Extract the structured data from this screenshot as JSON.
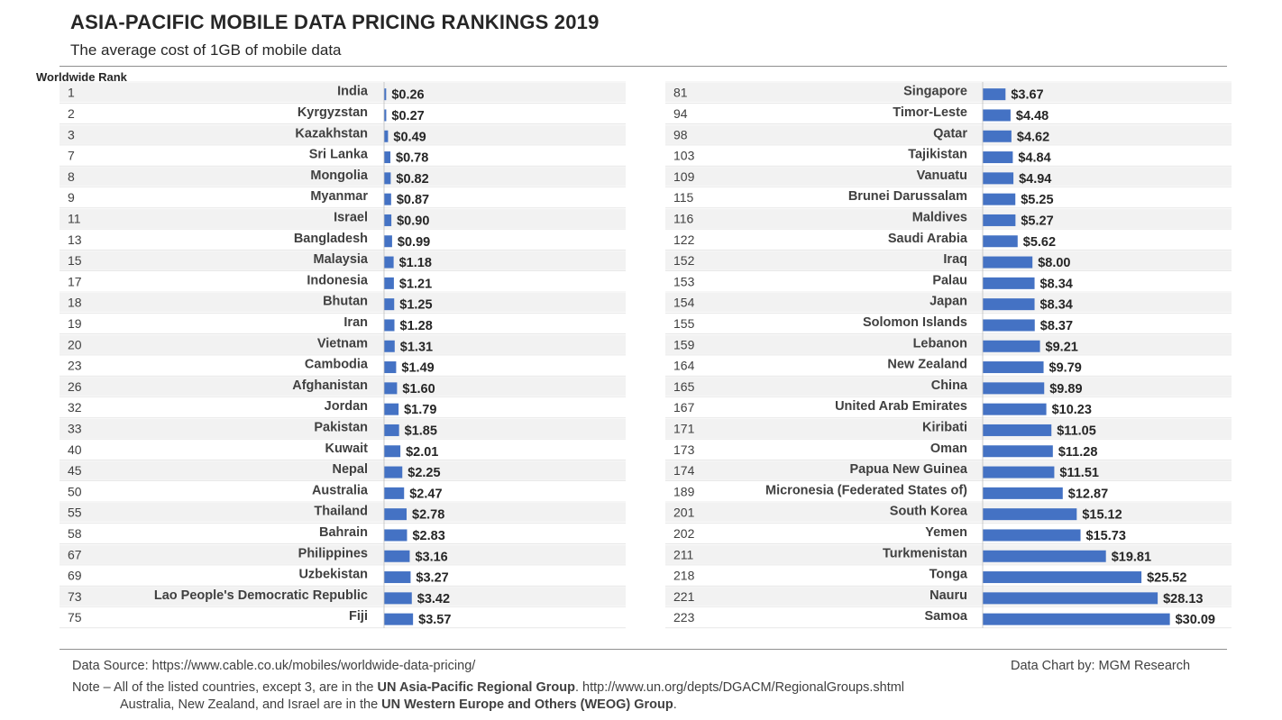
{
  "header": {
    "title": "ASIA-PACIFIC MOBILE DATA PRICING RANKINGS 2019",
    "subtitle": "The average cost of 1GB of mobile data",
    "rank_label": "Worldwide Rank"
  },
  "chart_data": [
    {
      "type": "bar",
      "orientation": "horizontal",
      "title": "ASIA-PACIFIC MOBILE DATA PRICING RANKINGS 2019",
      "subtitle": "The average cost of 1GB of mobile data",
      "xlim": [
        0,
        32
      ],
      "bar_color": "#4472C4",
      "ranks": [
        1,
        2,
        3,
        7,
        8,
        9,
        11,
        13,
        15,
        17,
        18,
        19,
        20,
        23,
        26,
        32,
        33,
        40,
        45,
        50,
        55,
        58,
        67,
        69,
        73,
        75
      ],
      "categories": [
        "India",
        "Kyrgyzstan",
        "Kazakhstan",
        "Sri Lanka",
        "Mongolia",
        "Myanmar",
        "Israel",
        "Bangladesh",
        "Malaysia",
        "Indonesia",
        "Bhutan",
        "Iran",
        "Vietnam",
        "Cambodia",
        "Afghanistan",
        "Jordan",
        "Pakistan",
        "Kuwait",
        "Nepal",
        "Australia",
        "Thailand",
        "Bahrain",
        "Philippines",
        "Uzbekistan",
        "Lao People's Democratic Republic",
        "Fiji"
      ],
      "values": [
        0.26,
        0.27,
        0.49,
        0.78,
        0.82,
        0.87,
        0.9,
        0.99,
        1.18,
        1.21,
        1.25,
        1.28,
        1.31,
        1.49,
        1.6,
        1.79,
        1.85,
        2.01,
        2.25,
        2.47,
        2.78,
        2.83,
        3.16,
        3.27,
        3.42,
        3.57
      ],
      "labels": [
        "$0.26",
        "$0.27",
        "$0.49",
        "$0.78",
        "$0.82",
        "$0.87",
        "$0.90",
        "$0.99",
        "$1.18",
        "$1.21",
        "$1.25",
        "$1.28",
        "$1.31",
        "$1.49",
        "$1.60",
        "$1.79",
        "$1.85",
        "$2.01",
        "$2.25",
        "$2.47",
        "$2.78",
        "$2.83",
        "$3.16",
        "$3.27",
        "$3.42",
        "$3.57"
      ]
    },
    {
      "type": "bar",
      "orientation": "horizontal",
      "xlim": [
        0,
        32
      ],
      "bar_color": "#4472C4",
      "ranks": [
        81,
        94,
        98,
        103,
        109,
        115,
        116,
        122,
        152,
        153,
        154,
        155,
        159,
        164,
        165,
        167,
        171,
        173,
        174,
        189,
        201,
        202,
        211,
        218,
        221,
        223
      ],
      "categories": [
        "Singapore",
        "Timor-Leste",
        "Qatar",
        "Tajikistan",
        "Vanuatu",
        "Brunei Darussalam",
        "Maldives",
        "Saudi Arabia",
        "Iraq",
        "Palau",
        "Japan",
        "Solomon Islands",
        "Lebanon",
        "New Zealand",
        "China",
        "United Arab Emirates",
        "Kiribati",
        "Oman",
        "Papua New Guinea",
        "Micronesia (Federated States of)",
        "South Korea",
        "Yemen",
        "Turkmenistan",
        "Tonga",
        "Nauru",
        "Samoa"
      ],
      "values": [
        3.67,
        4.48,
        4.62,
        4.84,
        4.94,
        5.25,
        5.27,
        5.62,
        8.0,
        8.34,
        8.34,
        8.37,
        9.21,
        9.79,
        9.89,
        10.23,
        11.05,
        11.28,
        11.51,
        12.87,
        15.12,
        15.73,
        19.81,
        25.52,
        28.13,
        30.09
      ],
      "labels": [
        "$3.67",
        "$4.48",
        "$4.62",
        "$4.84",
        "$4.94",
        "$5.25",
        "$5.27",
        "$5.62",
        "$8.00",
        "$8.34",
        "$8.34",
        "$8.37",
        "$9.21",
        "$9.79",
        "$9.89",
        "$10.23",
        "$11.05",
        "$11.28",
        "$11.51",
        "$12.87",
        "$15.12",
        "$15.73",
        "$19.81",
        "$25.52",
        "$28.13",
        "$30.09"
      ]
    }
  ],
  "footer": {
    "source": "Data Source: https://www.cable.co.uk/mobiles/worldwide-data-pricing/",
    "credit": "Data Chart by: MGM Research",
    "note_prefix": "Note – All of the listed countries, except 3, are in the ",
    "note_group1": "UN Asia-Pacific Regional Group",
    "note_suffix": ". http://www.un.org/depts/DGACM/RegionalGroups.shtml",
    "note2_prefix": "Australia, New Zealand, and Israel are in the ",
    "note_group2": "UN Western Europe and Others (WEOG) Group",
    "note2_suffix": "."
  }
}
